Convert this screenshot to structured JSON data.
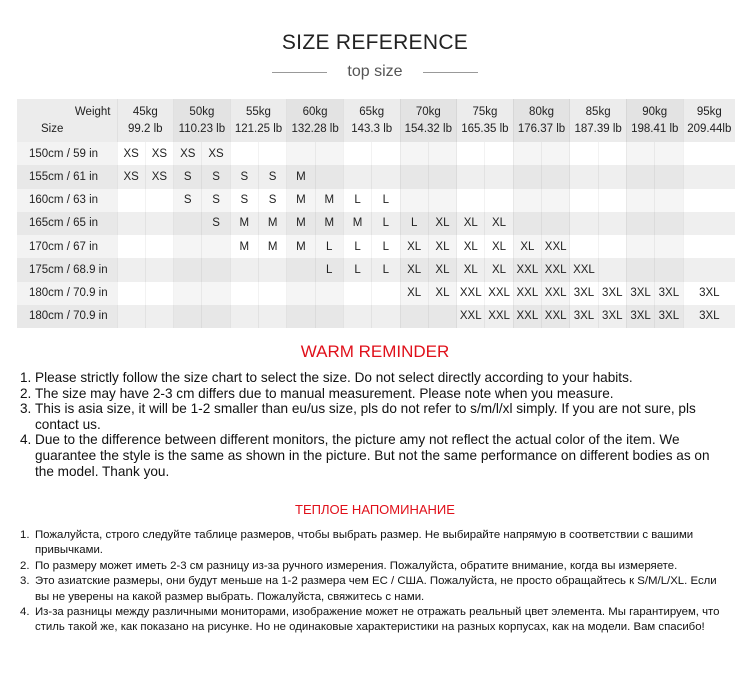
{
  "header": {
    "title": "SIZE REFERENCE",
    "subtitle": "top size"
  },
  "table": {
    "weight_label": "Weight",
    "size_label": "Size",
    "weights": [
      {
        "kg": "45kg",
        "lb": "99.2 lb"
      },
      {
        "kg": "50kg",
        "lb": "110.23 lb"
      },
      {
        "kg": "55kg",
        "lb": "121.25 lb"
      },
      {
        "kg": "60kg",
        "lb": "132.28 lb"
      },
      {
        "kg": "65kg",
        "lb": "143.3 lb"
      },
      {
        "kg": "70kg",
        "lb": "154.32 lb"
      },
      {
        "kg": "75kg",
        "lb": "165.35 lb"
      },
      {
        "kg": "80kg",
        "lb": "176.37 lb"
      },
      {
        "kg": "85kg",
        "lb": "187.39 lb"
      },
      {
        "kg": "90kg",
        "lb": "198.41 lb"
      },
      {
        "kg": "95kg",
        "lb": "209.44lb"
      }
    ],
    "rows": [
      {
        "size": "150cm / 59 in",
        "cells": [
          "XS",
          "XS",
          "XS",
          "XS",
          "",
          "",
          "",
          "",
          "",
          "",
          "",
          "",
          "",
          "",
          "",
          "",
          "",
          "",
          "",
          "",
          ""
        ]
      },
      {
        "size": "155cm / 61 in",
        "cells": [
          "XS",
          "XS",
          "S",
          "S",
          "S",
          "S",
          "M",
          "",
          "",
          "",
          "",
          "",
          "",
          "",
          "",
          "",
          "",
          "",
          "",
          "",
          ""
        ]
      },
      {
        "size": "160cm / 63 in",
        "cells": [
          "",
          "",
          "S",
          "S",
          "S",
          "S",
          "M",
          "M",
          "L",
          "L",
          "",
          "",
          "",
          "",
          "",
          "",
          "",
          "",
          "",
          "",
          ""
        ]
      },
      {
        "size": "165cm / 65 in",
        "cells": [
          "",
          "",
          "",
          "S",
          "M",
          "M",
          "M",
          "M",
          "M",
          "L",
          "L",
          "XL",
          "XL",
          "XL",
          "",
          "",
          "",
          "",
          "",
          "",
          ""
        ]
      },
      {
        "size": "170cm / 67 in",
        "cells": [
          "",
          "",
          "",
          "",
          "M",
          "M",
          "M",
          "L",
          "L",
          "L",
          "XL",
          "XL",
          "XL",
          "XL",
          "XL",
          "XXL",
          "",
          "",
          "",
          "",
          ""
        ]
      },
      {
        "size": "175cm / 68.9 in",
        "cells": [
          "",
          "",
          "",
          "",
          "",
          "",
          "",
          "L",
          "L",
          "L",
          "XL",
          "XL",
          "XL",
          "XL",
          "XXL",
          "XXL",
          "XXL",
          "",
          "",
          "",
          ""
        ]
      },
      {
        "size": "180cm / 70.9 in",
        "cells": [
          "",
          "",
          "",
          "",
          "",
          "",
          "",
          "",
          "",
          "",
          "XL",
          "XL",
          "XXL",
          "XXL",
          "XXL",
          "XXL",
          "3XL",
          "3XL",
          "3XL",
          "3XL",
          "3XL"
        ]
      },
      {
        "size": "180cm / 70.9 in",
        "cells": [
          "",
          "",
          "",
          "",
          "",
          "",
          "",
          "",
          "",
          "",
          "",
          "",
          "XXL",
          "XXL",
          "XXL",
          "XXL",
          "3XL",
          "3XL",
          "3XL",
          "3XL",
          "3XL"
        ]
      }
    ]
  },
  "reminder_en": {
    "title": "WARM REMINDER",
    "items": [
      {
        "num": "1.",
        "text": "Please strictly follow the size chart to select the size. Do not select directly according to your habits."
      },
      {
        "num": "2.",
        "text": "The size may have 2-3 cm differs due to manual measurement. Please note when you measure."
      },
      {
        "num": "3.",
        "text": "This is asia size, it will be 1-2 smaller than eu/us size, pls do not refer to s/m/l/xl simply. If you are not sure, pls contact us."
      },
      {
        "num": "4.",
        "text": "Due to the difference between different monitors, the picture amy not reflect the actual color of the item. We guarantee the style is the same as shown in the picture. But not the same performance on different bodies as on the model. Thank you."
      }
    ]
  },
  "reminder_ru": {
    "title": "ТЕПЛОЕ НАПОМИНАНИЕ",
    "items": [
      {
        "num": "1.",
        "text": "Пожалуйста, строго следуйте таблице размеров, чтобы выбрать размер. Не выбирайте напрямую в соответствии с вашими привычками."
      },
      {
        "num": "2.",
        "text": "По размеру может иметь 2-3 см разницу из-за ручного измерения. Пожалуйста, обратите внимание, когда вы измеряете."
      },
      {
        "num": "3.",
        "text": "Это азиатские размеры, они будут меньше на 1-2 размера чем ЕС / США. Пожалуйста, не просто обращайтесь к S/M/L/XL. Если вы не уверены на какой размер выбрать. Пожалуйста, свяжитесь с нами."
      },
      {
        "num": "4.",
        "text": "Из-за разницы между различными мониторами, изображение может не отражать реальный цвет элемента. Мы гарантируем, что стиль такой же, как показано на рисунке. Но не одинаковые характеристики на разных корпусах, как на модели. Вам спасибо!"
      }
    ]
  },
  "colors": {
    "accent": "#e0101a"
  }
}
